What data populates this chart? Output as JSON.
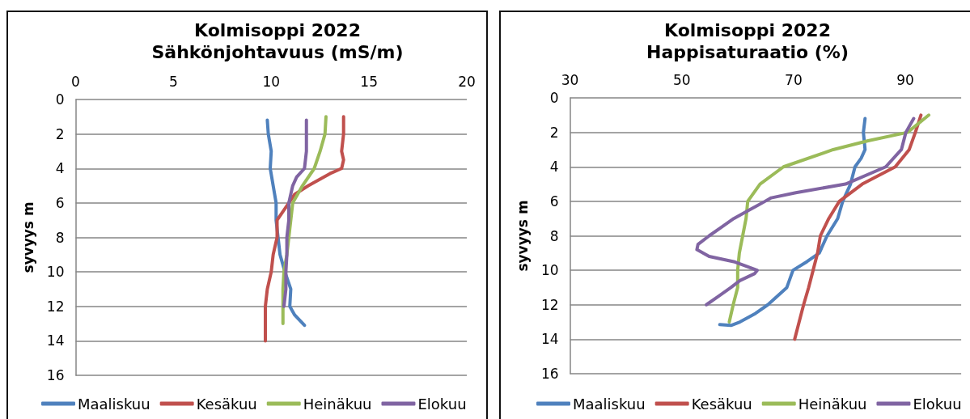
{
  "chart_data": [
    {
      "type": "line",
      "title": "Kolmisoppi 2022",
      "subtitle": "Sähkönjohtavuus (mS/m)",
      "ylabel": "syvyys m",
      "xlim": [
        0,
        20
      ],
      "xticks": [
        0,
        5,
        10,
        15,
        20
      ],
      "ylim": [
        16,
        0
      ],
      "yticks": [
        0,
        2,
        4,
        6,
        8,
        10,
        12,
        14,
        16
      ],
      "grid": "y",
      "legend": "bottom",
      "line_style": "solid",
      "series": [
        {
          "name": "Maaliskuu",
          "color": "#4f81bd",
          "x": [
            9.8,
            9.85,
            10.0,
            9.95,
            10.1,
            10.25,
            10.25,
            10.35,
            10.45,
            10.7,
            11.0,
            10.95,
            11.2,
            11.7
          ],
          "values": [
            1.2,
            2,
            3,
            4,
            5,
            6,
            7,
            8,
            9,
            10,
            11,
            12,
            12.5,
            13.1
          ]
        },
        {
          "name": "Kesäkuu",
          "color": "#c0504d",
          "x": [
            13.7,
            13.7,
            13.6,
            13.7,
            13.6,
            13.0,
            11.9,
            11.2,
            10.9,
            10.3,
            10.3,
            10.1,
            10.0,
            9.8,
            9.7,
            9.7,
            9.7
          ],
          "values": [
            1,
            2,
            3,
            3.5,
            4,
            4.3,
            5,
            5.5,
            6,
            7,
            8,
            9,
            10,
            11,
            12,
            13,
            14
          ]
        },
        {
          "name": "Heinäkuu",
          "color": "#9bbb59",
          "x": [
            12.8,
            12.75,
            12.5,
            12.2,
            11.6,
            11.1,
            11.0,
            10.9,
            10.8,
            10.65,
            10.6,
            10.6,
            10.6
          ],
          "values": [
            1,
            2,
            3,
            4,
            5,
            6,
            7,
            8,
            9,
            10,
            11,
            12,
            13
          ]
        },
        {
          "name": "Elokuu",
          "color": "#8064a2",
          "x": [
            11.8,
            11.8,
            11.8,
            11.7,
            11.3,
            11.1,
            10.9,
            10.9,
            10.8,
            10.8,
            10.75,
            10.75,
            10.65
          ],
          "values": [
            1.2,
            2,
            3,
            4,
            4.5,
            5,
            6,
            7,
            8,
            9,
            10,
            11,
            12
          ]
        }
      ]
    },
    {
      "type": "line",
      "title": "Kolmisoppi 2022",
      "subtitle": "Happisaturaatio (%)",
      "ylabel": "syvyys m",
      "xlim": [
        30,
        100
      ],
      "xticks": [
        30,
        50,
        70,
        90
      ],
      "ylim": [
        16,
        0
      ],
      "yticks": [
        0,
        2,
        4,
        6,
        8,
        10,
        12,
        14,
        16
      ],
      "grid": "y",
      "legend": "bottom",
      "line_style": "solid",
      "series": [
        {
          "name": "Maaliskuu",
          "color": "#4f81bd",
          "x": [
            82.8,
            82.5,
            82.8,
            82.1,
            81.0,
            80.2,
            78.8,
            77.9,
            76.0,
            74.6,
            72.4,
            69.9,
            68.8,
            65.4,
            63.2,
            60.4,
            58.8,
            56.8
          ],
          "values": [
            1.2,
            2,
            3,
            3.5,
            4,
            5,
            6,
            7,
            8,
            9,
            9.5,
            10,
            11,
            12,
            12.5,
            13,
            13.2,
            13.15
          ]
        },
        {
          "name": "Kesäkuu",
          "color": "#c0504d",
          "x": [
            92.8,
            91.8,
            90.7,
            88.2,
            82.3,
            78.2,
            76.3,
            74.8,
            74.3,
            73.5,
            72.7,
            71.8,
            71.0,
            70.2
          ],
          "values": [
            1,
            2,
            3,
            4,
            5,
            6,
            7,
            8,
            9,
            10,
            11,
            12,
            13,
            14
          ]
        },
        {
          "name": "Heinäkuu",
          "color": "#9bbb59",
          "x": [
            94.2,
            90.4,
            83.2,
            77.1,
            68.2,
            64.0,
            61.8,
            61.5,
            60.9,
            60.3,
            60.0,
            60.0,
            59.2,
            58.5
          ],
          "values": [
            1,
            2,
            2.5,
            3,
            4,
            5,
            6,
            7,
            8,
            9,
            10,
            11,
            12,
            13
          ]
        },
        {
          "name": "Elokuu",
          "color": "#8064a2",
          "x": [
            91.5,
            90.1,
            89.3,
            86.5,
            79.3,
            70.4,
            66.0,
            64.9,
            62.1,
            59.3,
            57.1,
            54.9,
            52.9,
            52.7,
            54.9,
            59.3,
            63.5,
            63.0,
            60.4,
            58.8,
            56.6,
            54.4
          ],
          "values": [
            1.2,
            2,
            3,
            4,
            5,
            5.5,
            5.8,
            6,
            6.5,
            7,
            7.5,
            8,
            8.5,
            8.8,
            9.2,
            9.5,
            10,
            10.2,
            10.6,
            11,
            11.5,
            12
          ]
        }
      ]
    }
  ]
}
